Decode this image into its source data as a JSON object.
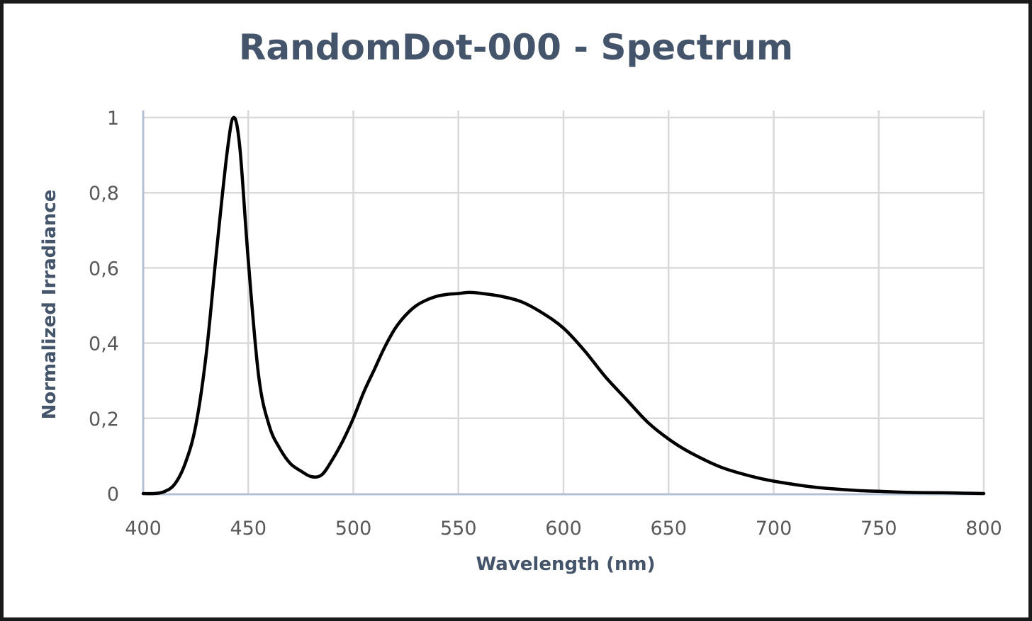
{
  "chart_data": {
    "type": "line",
    "title": "RandomDot-000 - Spectrum",
    "xlabel": "Wavelength (nm)",
    "ylabel": "Normalized Irradiance",
    "xlim": [
      400,
      800
    ],
    "ylim": [
      0,
      1
    ],
    "x_ticks": [
      "400",
      "450",
      "500",
      "550",
      "600",
      "650",
      "700",
      "750",
      "800"
    ],
    "y_ticks": [
      "0",
      "0,2",
      "0,4",
      "0,6",
      "0,8",
      "1"
    ],
    "grid": true,
    "legend": null,
    "series": [
      {
        "name": "Spectrum",
        "color": "#000000",
        "x": [
          400,
          405,
          410,
          415,
          420,
          425,
          430,
          435,
          440,
          443,
          446,
          450,
          455,
          460,
          465,
          470,
          475,
          480,
          485,
          490,
          495,
          500,
          505,
          510,
          515,
          520,
          525,
          530,
          535,
          540,
          545,
          550,
          555,
          560,
          570,
          580,
          590,
          600,
          610,
          620,
          630,
          640,
          650,
          660,
          675,
          690,
          700,
          715,
          725,
          740,
          750,
          765,
          780,
          790,
          800
        ],
        "values": [
          0.0,
          0.0,
          0.005,
          0.025,
          0.08,
          0.18,
          0.37,
          0.65,
          0.91,
          1.0,
          0.92,
          0.62,
          0.31,
          0.18,
          0.12,
          0.08,
          0.06,
          0.045,
          0.05,
          0.09,
          0.14,
          0.2,
          0.27,
          0.33,
          0.39,
          0.44,
          0.475,
          0.5,
          0.515,
          0.525,
          0.53,
          0.532,
          0.535,
          0.533,
          0.525,
          0.51,
          0.48,
          0.44,
          0.38,
          0.31,
          0.25,
          0.19,
          0.145,
          0.11,
          0.07,
          0.045,
          0.033,
          0.02,
          0.014,
          0.008,
          0.006,
          0.003,
          0.002,
          0.001,
          0.0
        ]
      }
    ]
  },
  "colors": {
    "title_text": "#44546a",
    "tick_text": "#595959",
    "gridline": "#d9d9d9",
    "axis_line": "#b4c0d4",
    "series_line": "#000000",
    "frame_border": "#1a1a1a"
  }
}
